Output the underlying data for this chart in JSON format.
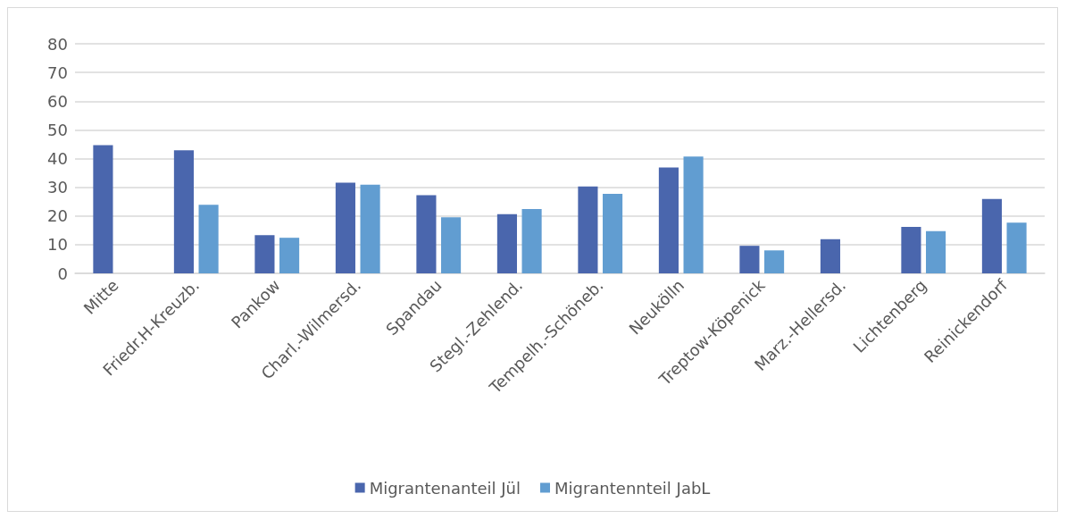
{
  "chart_data": {
    "type": "bar",
    "categories": [
      "Mitte",
      "Friedr.H-Kreuzb.",
      "Pankow",
      "Charl.-Wilmersd.",
      "Spandau",
      "Stegl.-Zehlend.",
      "Tempelh.-Schöneb.",
      "Neukölln",
      "Treptow-Köpenick",
      "Marz.-Hellersd.",
      "Lichtenberg",
      "Reinickendorf"
    ],
    "series": [
      {
        "name": "Migrantenanteil Jül",
        "color": "#4a66ad",
        "values": [
          44.7,
          42.9,
          13.3,
          31.6,
          27.2,
          20.6,
          30.3,
          36.9,
          9.6,
          11.9,
          16.2,
          25.9
        ]
      },
      {
        "name": "Migrantennteil JabL",
        "color": "#619dd1",
        "values": [
          null,
          23.9,
          12.4,
          30.9,
          19.5,
          22.4,
          27.7,
          40.7,
          8.0,
          null,
          14.7,
          17.7
        ]
      }
    ],
    "ylim": [
      0,
      80
    ],
    "yticks": [
      0,
      10,
      20,
      30,
      40,
      50,
      60,
      70,
      80
    ],
    "grid": "y",
    "legend": "bottom"
  }
}
